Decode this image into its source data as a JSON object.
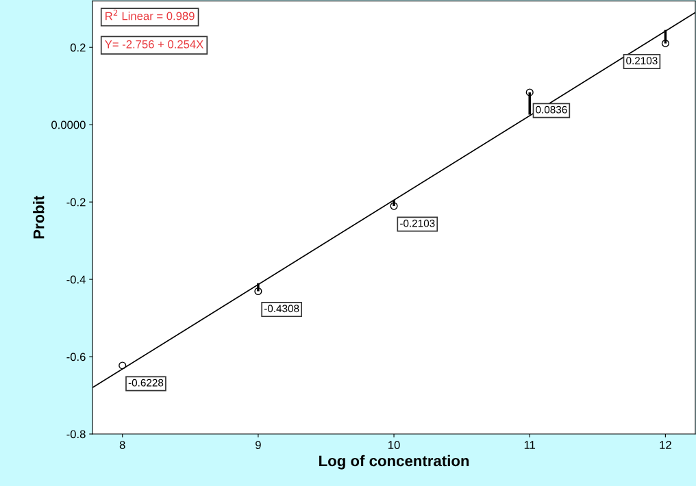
{
  "chart_data": {
    "type": "scatter",
    "xlabel": "Log of concentration",
    "ylabel": "Probit",
    "x": [
      8,
      9,
      10,
      11,
      12
    ],
    "series": [
      {
        "color": "#000000",
        "marker": "circle",
        "values": [
          -0.6228,
          -0.4308,
          -0.2103,
          0.0836,
          0.2103
        ],
        "value_labels": [
          "-0.6228",
          "-0.4308",
          "-0.2103",
          "0.0836",
          "0.2103"
        ],
        "errors": [
          null,
          [
            -0.4308,
            -0.41
          ],
          [
            -0.2103,
            -0.195
          ],
          [
            0.026,
            0.0836
          ],
          [
            0.2103,
            0.245
          ]
        ]
      },
      {
        "type": "line",
        "marker": "none",
        "color": "#000000",
        "x": [
          7.78,
          12.22
        ],
        "values": [
          -0.68,
          0.29
        ]
      }
    ],
    "xlim": [
      7.78,
      12.22
    ],
    "xticks": [
      8,
      9,
      10,
      11,
      12
    ],
    "ylim": [
      -0.8,
      0.32
    ],
    "yticks": [
      -0.8,
      -0.6,
      -0.4,
      -0.2,
      {
        "value": 0,
        "label": "0.0000"
      },
      0.2
    ],
    "grid": false,
    "legend": false,
    "annotations": [
      "R$^{2}$ Linear = 0.989",
      "Y= -2.756 + 0.254X"
    ]
  }
}
